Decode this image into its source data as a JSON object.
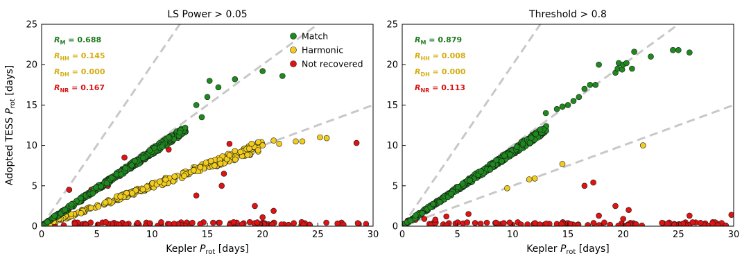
{
  "figure": {
    "ylabel_prefix": "Adopted TESS ",
    "xlabel_prefix": "Kepler ",
    "p_symbol": "P",
    "p_subscript": "rot",
    "unit": "[days]",
    "legend": [
      {
        "label": "Match",
        "color": "#1e8a1e"
      },
      {
        "label": "Harmonic",
        "color": "#f2cd1d"
      },
      {
        "label": "Not recovered",
        "color": "#e01212"
      }
    ],
    "colors": {
      "match": "#1e8a1e",
      "harmonic": "#f2cd1d",
      "not_recovered": "#e01212",
      "reference": "#c8c8c8",
      "match_text": "#1e7a1e",
      "harmonic_text": "#d4ad13",
      "nr_text": "#d81414"
    }
  },
  "chart_data": [
    {
      "type": "scatter",
      "title": "LS Power > 0.05",
      "xlim": [
        0,
        30
      ],
      "ylim": [
        0,
        25
      ],
      "xticks": [
        0,
        5,
        10,
        15,
        20,
        25,
        30
      ],
      "yticks": [
        0,
        5,
        10,
        15,
        20,
        25
      ],
      "reference_lines": [
        2,
        1,
        0.5
      ],
      "stats": [
        {
          "symbol": "R",
          "sub": "M",
          "text": " = 0.688",
          "series": "match"
        },
        {
          "symbol": "R",
          "sub": "HH",
          "text": " = 0.145",
          "series": "harmonic"
        },
        {
          "symbol": "R",
          "sub": "DH",
          "text": " = 0.000",
          "series": "harmonic"
        },
        {
          "symbol": "R",
          "sub": "NR",
          "text": " = 0.167",
          "series": "not_recovered"
        }
      ],
      "series": [
        {
          "name": "Match",
          "key": "match",
          "trend": [
            [
              0.2,
              0.2
            ],
            [
              13,
              12
            ]
          ],
          "points": [
            [
              14,
              15
            ],
            [
              14.5,
              13.5
            ],
            [
              15,
              16
            ],
            [
              15.2,
              18
            ],
            [
              16,
              17.2
            ],
            [
              17.5,
              18.2
            ],
            [
              20,
              19.2
            ],
            [
              21.8,
              18.6
            ],
            [
              13,
              12.2
            ],
            [
              12.5,
              11.6
            ],
            [
              11.5,
              11
            ]
          ]
        },
        {
          "name": "Harmonic",
          "key": "harmonic",
          "trend": [
            [
              0.2,
              0.1
            ],
            [
              20,
              10
            ]
          ],
          "points": [
            [
              17,
              8.8
            ],
            [
              17.5,
              9.3
            ],
            [
              18,
              9.2
            ],
            [
              18.8,
              9.6
            ],
            [
              19,
              10.2
            ],
            [
              19.6,
              10.4
            ],
            [
              20,
              10
            ],
            [
              21,
              10.6
            ],
            [
              21.5,
              10.2
            ],
            [
              23,
              10.5
            ],
            [
              23.6,
              10.5
            ],
            [
              25.2,
              11
            ],
            [
              25.8,
              10.9
            ]
          ]
        },
        {
          "name": "Not recovered",
          "key": "not_recovered",
          "trend": [
            [
              0.5,
              0.25
            ],
            [
              29.5,
              0.25
            ]
          ],
          "points": [
            [
              2.5,
              4.5
            ],
            [
              4.5,
              4.5
            ],
            [
              6,
              5
            ],
            [
              7.5,
              8.5
            ],
            [
              9,
              8.6
            ],
            [
              11.5,
              9.5
            ],
            [
              14,
              3.8
            ],
            [
              16.3,
              5
            ],
            [
              16.5,
              6.5
            ],
            [
              17,
              10.2
            ],
            [
              19.3,
              2.5
            ],
            [
              20,
              1.1
            ],
            [
              21,
              1.9
            ],
            [
              28.5,
              10.3
            ],
            [
              1.2,
              0.1
            ],
            [
              2,
              0.1
            ],
            [
              3,
              0.3
            ],
            [
              4,
              0.2
            ],
            [
              5.8,
              0.5
            ],
            [
              12,
              0.3
            ]
          ]
        }
      ]
    },
    {
      "type": "scatter",
      "title": "Threshold > 0.8",
      "xlim": [
        0,
        30
      ],
      "ylim": [
        0,
        25
      ],
      "xticks": [
        0,
        5,
        10,
        15,
        20,
        25,
        30
      ],
      "yticks": [
        0,
        5,
        10,
        15,
        20,
        25
      ],
      "reference_lines": [
        2,
        1,
        0.5
      ],
      "stats": [
        {
          "symbol": "R",
          "sub": "M",
          "text": " = 0.879",
          "series": "match"
        },
        {
          "symbol": "R",
          "sub": "HH",
          "text": " = 0.008",
          "series": "harmonic"
        },
        {
          "symbol": "R",
          "sub": "DH",
          "text": " = 0.000",
          "series": "harmonic"
        },
        {
          "symbol": "R",
          "sub": "NR",
          "text": " = 0.113",
          "series": "not_recovered"
        }
      ],
      "series": [
        {
          "name": "Match",
          "key": "match",
          "trend": [
            [
              0.2,
              0.2
            ],
            [
              13,
              12
            ]
          ],
          "points": [
            [
              13,
              14
            ],
            [
              14,
              14.5
            ],
            [
              14.5,
              14.8
            ],
            [
              15,
              15
            ],
            [
              15.5,
              15.5
            ],
            [
              16,
              16
            ],
            [
              16.5,
              17
            ],
            [
              17,
              17.5
            ],
            [
              17.5,
              17.5
            ],
            [
              17.8,
              20
            ],
            [
              19.3,
              19
            ],
            [
              19.5,
              19.5
            ],
            [
              19.6,
              20.2
            ],
            [
              19.9,
              19.4
            ],
            [
              20,
              20
            ],
            [
              20.3,
              20.2
            ],
            [
              20.8,
              19.5
            ],
            [
              21,
              21.6
            ],
            [
              22.5,
              21
            ],
            [
              24.5,
              21.8
            ],
            [
              25,
              21.8
            ],
            [
              26,
              21.5
            ]
          ]
        },
        {
          "name": "Harmonic",
          "key": "harmonic",
          "trend": null,
          "points": [
            [
              9.5,
              4.7
            ],
            [
              11.5,
              5.8
            ],
            [
              12,
              5.9
            ],
            [
              14.5,
              7.7
            ],
            [
              21.8,
              10
            ]
          ]
        },
        {
          "name": "Not recovered",
          "key": "not_recovered",
          "trend": [
            [
              2,
              0.2
            ],
            [
              29.5,
              0.2
            ]
          ],
          "points": [
            [
              0.5,
              0.7
            ],
            [
              1.2,
              0.8
            ],
            [
              2,
              0.9
            ],
            [
              3,
              0.8
            ],
            [
              4,
              1.2
            ],
            [
              6,
              1.5
            ],
            [
              16.5,
              5
            ],
            [
              17.3,
              5.4
            ],
            [
              17.8,
              1.3
            ],
            [
              19.3,
              2.5
            ],
            [
              20.5,
              2
            ],
            [
              26,
              1.3
            ],
            [
              29.8,
              1.4
            ],
            [
              20,
              0.9
            ],
            [
              24,
              0.3
            ],
            [
              27,
              0.4
            ]
          ]
        }
      ]
    }
  ]
}
